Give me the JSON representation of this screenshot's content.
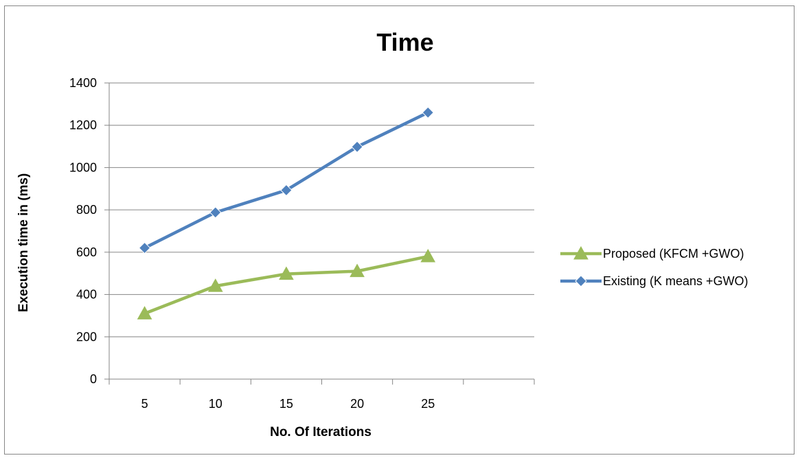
{
  "chart_data": {
    "type": "line",
    "title": "Time",
    "xlabel": "No. Of Iterations",
    "ylabel": "Execution time in (ms)",
    "categories": [
      "5",
      "10",
      "15",
      "20",
      "25"
    ],
    "category_slots": 6,
    "ylim": [
      0,
      1400
    ],
    "yticks": [
      0,
      200,
      400,
      600,
      800,
      1000,
      1200,
      1400
    ],
    "grid": true,
    "legend_position": "right",
    "series": [
      {
        "name": "Proposed (KFCM +GWO)",
        "values": [
          310,
          440,
          497,
          510,
          580
        ],
        "color": "#9BBB59",
        "marker": "triangle"
      },
      {
        "name": "Existing (K means +GWO)",
        "values": [
          620,
          788,
          893,
          1098,
          1260
        ],
        "color": "#4F81BD",
        "marker": "diamond"
      }
    ]
  }
}
